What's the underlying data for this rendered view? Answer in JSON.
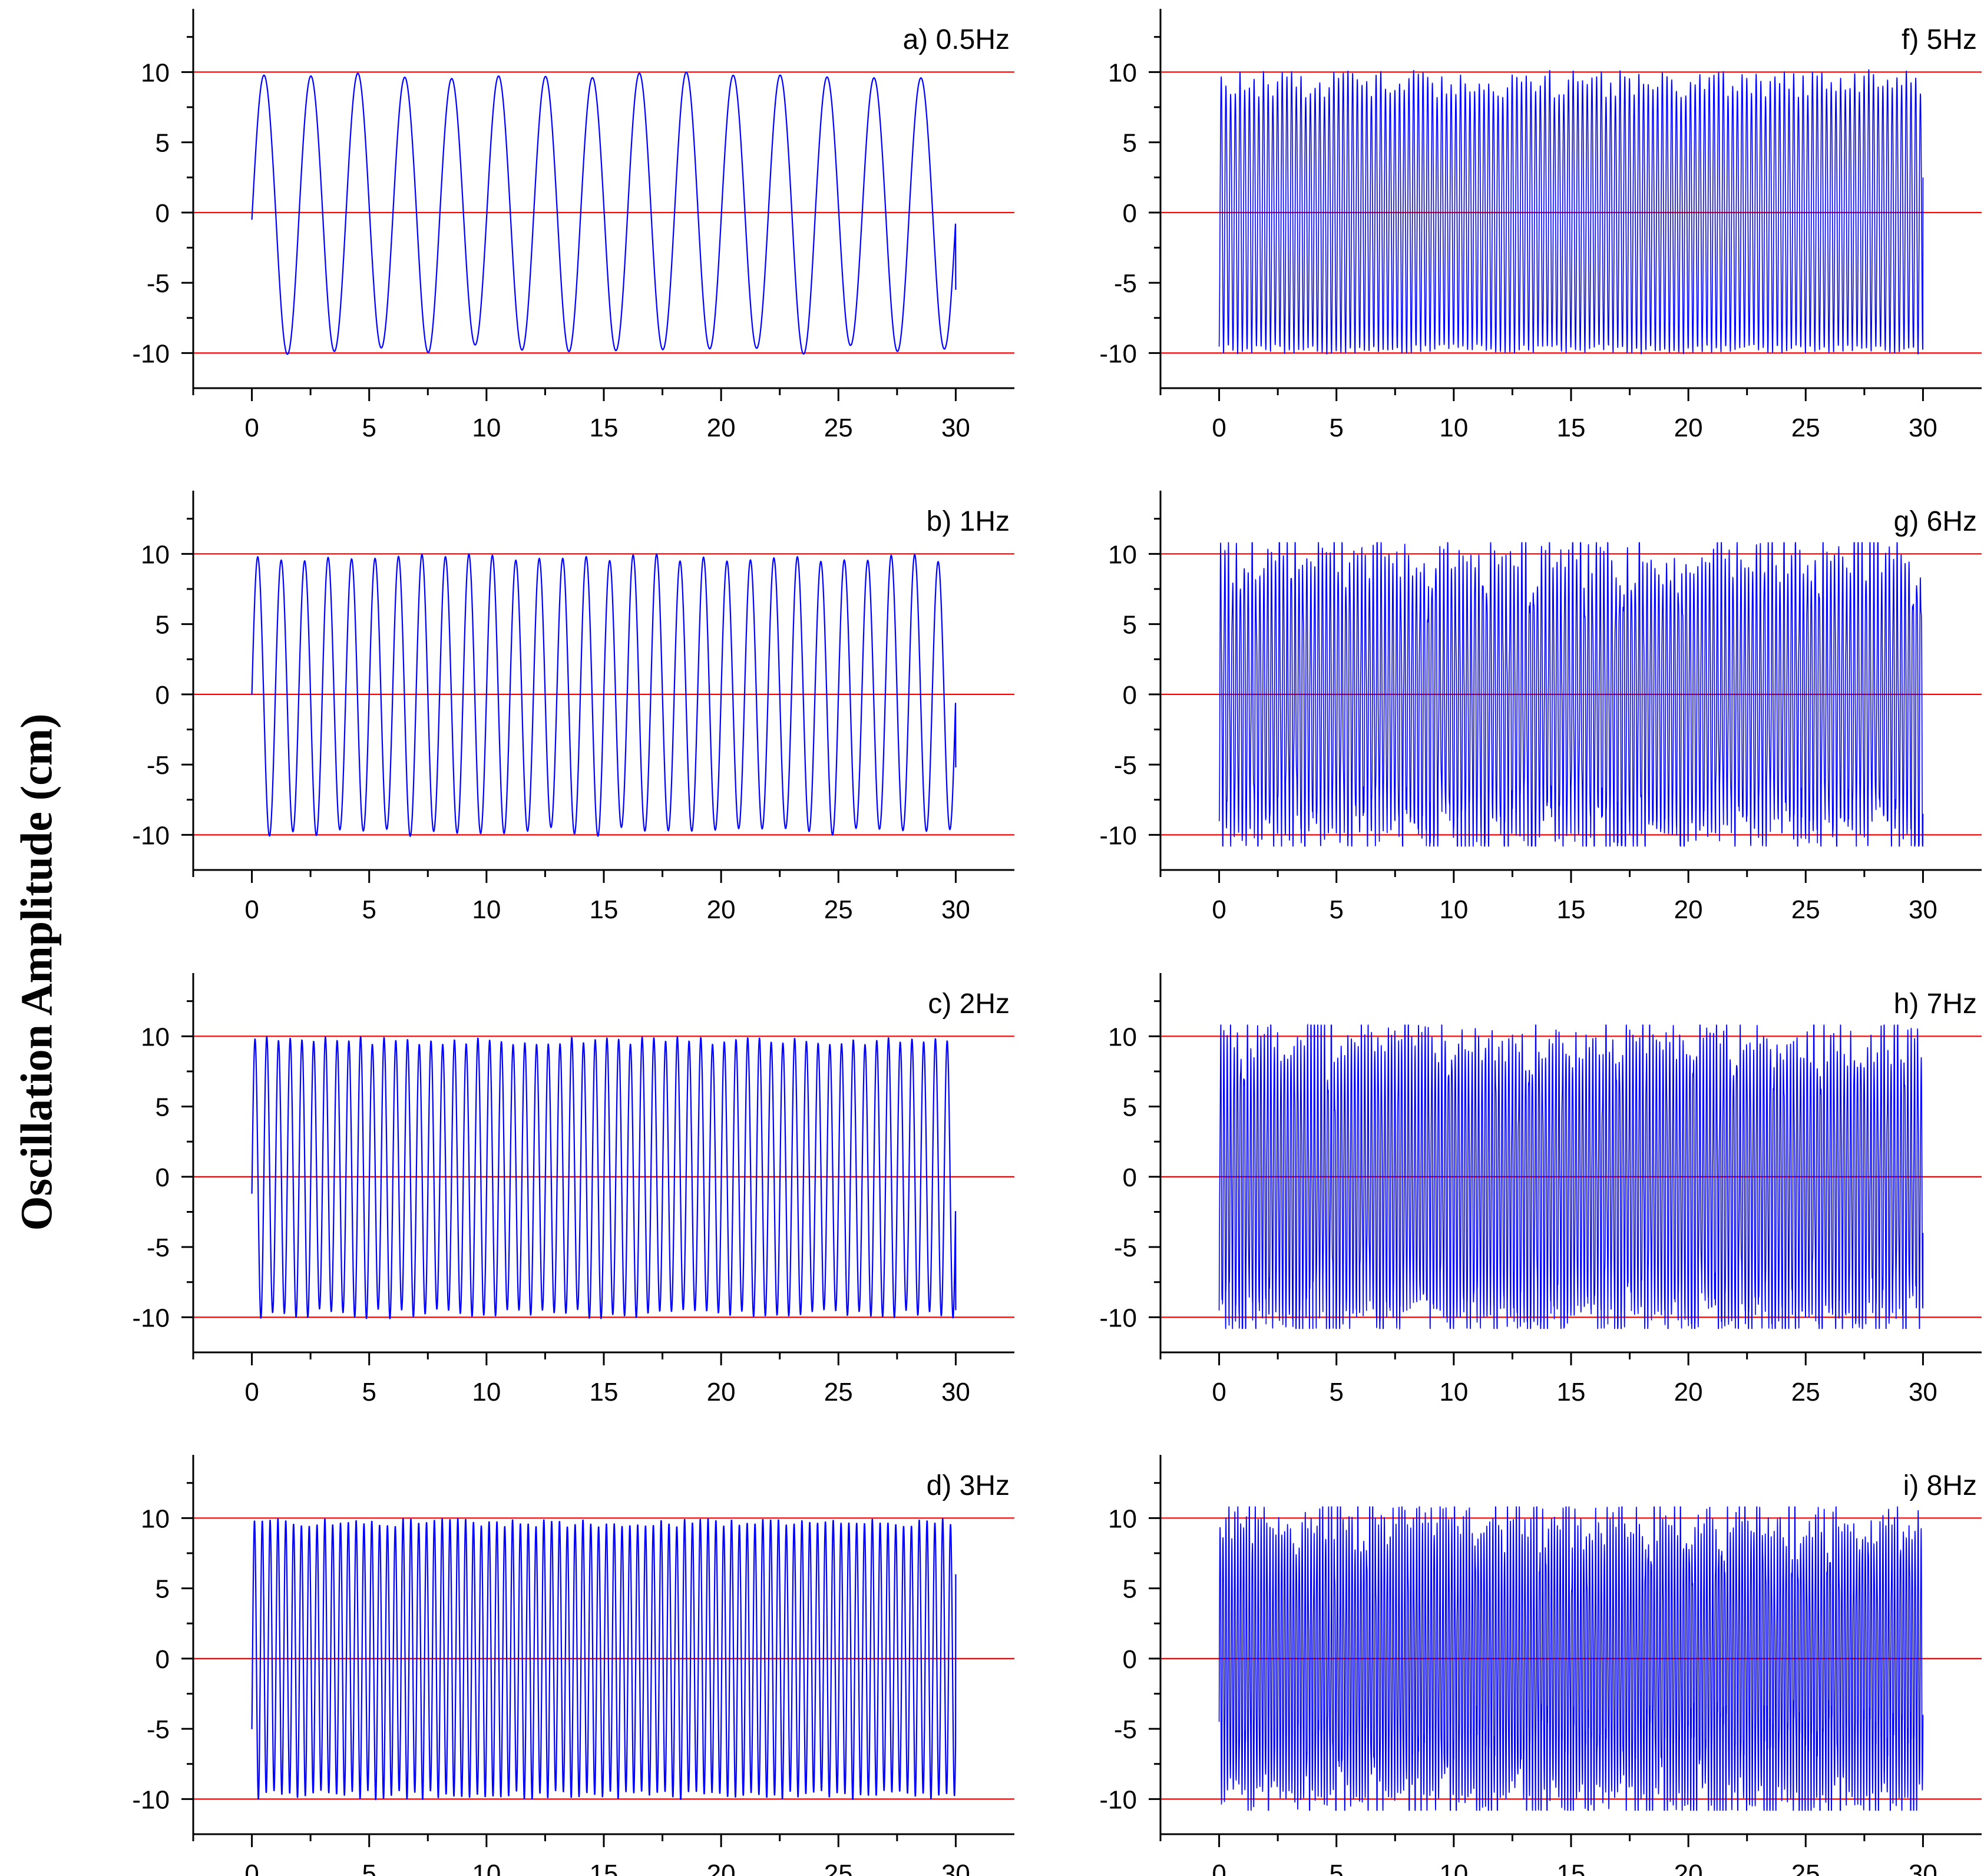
{
  "figure": {
    "ylabel": "Oscillation Amplitude (cm)"
  },
  "colors": {
    "signal": "#0000ff",
    "reference": "#ff0000",
    "axis": "#000000"
  },
  "chart_data": [
    {
      "type": "line",
      "title": "a) 0.5Hz",
      "frequency_hz": 0.5,
      "xlabel": "",
      "ylabel": "Oscillation Amplitude (cm)",
      "xlim": [
        -2.5,
        32.5
      ],
      "ylim": [
        -12.5,
        14.5
      ],
      "xticks": [
        0,
        5,
        10,
        15,
        20,
        25,
        30
      ],
      "yticks": [
        10,
        5,
        0,
        -5,
        -10
      ],
      "ytick_labels": [
        "10",
        "5",
        "0",
        "-5",
        "-10"
      ],
      "reference_lines": [
        10,
        0,
        -10
      ],
      "series": [
        {
          "name": "oscillation",
          "t_start": 0,
          "t_end": 30,
          "amplitude": 10,
          "start_value": -0.5,
          "end_value": -5.5,
          "cycles": 15
        }
      ]
    },
    {
      "type": "line",
      "title": "b) 1Hz",
      "frequency_hz": 1,
      "xlabel": "",
      "ylabel": "Oscillation Amplitude (cm)",
      "xlim": [
        -2.5,
        32.5
      ],
      "ylim": [
        -12.5,
        14.5
      ],
      "xticks": [
        0,
        5,
        10,
        15,
        20,
        25,
        30
      ],
      "yticks": [
        10,
        5,
        0,
        -5,
        -10
      ],
      "ytick_labels": [
        "10",
        "5",
        "0",
        "-5",
        "-10"
      ],
      "reference_lines": [
        10,
        0,
        -10
      ],
      "series": [
        {
          "name": "oscillation",
          "t_start": 0,
          "t_end": 30,
          "amplitude": 10,
          "start_value": 0,
          "end_value": -5.2,
          "cycles": 30
        }
      ]
    },
    {
      "type": "line",
      "title": "c) 2Hz",
      "frequency_hz": 2,
      "xlabel": "",
      "ylabel": "Oscillation Amplitude (cm)",
      "xlim": [
        -2.5,
        32.5
      ],
      "ylim": [
        -12.5,
        14.5
      ],
      "xticks": [
        0,
        5,
        10,
        15,
        20,
        25,
        30
      ],
      "yticks": [
        10,
        5,
        0,
        -5,
        -10
      ],
      "ytick_labels": [
        "10",
        "5",
        "0",
        "-5",
        "-10"
      ],
      "reference_lines": [
        10,
        0,
        -10
      ],
      "series": [
        {
          "name": "oscillation",
          "t_start": 0,
          "t_end": 30,
          "amplitude": 10,
          "start_value": -1.2,
          "end_value": -9.5,
          "cycles": 60
        }
      ]
    },
    {
      "type": "line",
      "title": "d) 3Hz",
      "frequency_hz": 3,
      "xlabel": "",
      "ylabel": "Oscillation Amplitude (cm)",
      "xlim": [
        -2.5,
        32.5
      ],
      "ylim": [
        -12.5,
        14.5
      ],
      "xticks": [
        0,
        5,
        10,
        15,
        20,
        25,
        30
      ],
      "yticks": [
        10,
        5,
        0,
        -5,
        -10
      ],
      "ytick_labels": [
        "10",
        "5",
        "0",
        "-5",
        "-10"
      ],
      "reference_lines": [
        10,
        0,
        -10
      ],
      "series": [
        {
          "name": "oscillation",
          "t_start": 0,
          "t_end": 30,
          "amplitude": 10,
          "start_value": -5,
          "end_value": 6,
          "cycles": 90
        }
      ]
    },
    {
      "type": "line",
      "title": "f) 5Hz",
      "frequency_hz": 5,
      "xlabel": "",
      "ylabel": "Oscillation Amplitude (cm)",
      "xlim": [
        -2.5,
        32.5
      ],
      "ylim": [
        -12.5,
        14.5
      ],
      "xticks": [
        0,
        5,
        10,
        15,
        20,
        25,
        30
      ],
      "yticks": [
        10,
        5,
        0,
        -5,
        -10
      ],
      "ytick_labels": [
        "10",
        "5",
        "0",
        "-5",
        "-10"
      ],
      "reference_lines": [
        10,
        0,
        -10
      ],
      "series": [
        {
          "name": "oscillation",
          "t_start": 0,
          "t_end": 30,
          "amplitude": 10,
          "start_value": -9.5,
          "end_value": 2.5,
          "cycles": 150
        }
      ]
    },
    {
      "type": "line",
      "title": "g) 6Hz",
      "frequency_hz": 6,
      "xlabel": "",
      "ylabel": "Oscillation Amplitude (cm)",
      "xlim": [
        -2.5,
        32.5
      ],
      "ylim": [
        -12.5,
        14.5
      ],
      "xticks": [
        0,
        5,
        10,
        15,
        20,
        25,
        30
      ],
      "yticks": [
        10,
        5,
        0,
        -5,
        -10
      ],
      "ytick_labels": [
        "10",
        "5",
        "0",
        "-5",
        "-10"
      ],
      "reference_lines": [
        10,
        0,
        -10
      ],
      "series": [
        {
          "name": "oscillation",
          "t_start": 0,
          "t_end": 30,
          "amplitude": 10,
          "start_value": -9,
          "end_value": -8.5,
          "cycles": 180
        }
      ]
    },
    {
      "type": "line",
      "title": "h) 7Hz",
      "frequency_hz": 7,
      "xlabel": "",
      "ylabel": "Oscillation Amplitude (cm)",
      "xlim": [
        -2.5,
        32.5
      ],
      "ylim": [
        -12.5,
        14.5
      ],
      "xticks": [
        0,
        5,
        10,
        15,
        20,
        25,
        30
      ],
      "yticks": [
        10,
        5,
        0,
        -5,
        -10
      ],
      "ytick_labels": [
        "10",
        "5",
        "0",
        "-5",
        "-10"
      ],
      "reference_lines": [
        10,
        0,
        -10
      ],
      "series": [
        {
          "name": "oscillation",
          "t_start": 0,
          "t_end": 30,
          "amplitude": 10,
          "start_value": -9.5,
          "end_value": -4,
          "cycles": 210
        }
      ]
    },
    {
      "type": "line",
      "title": "i) 8Hz",
      "frequency_hz": 8,
      "xlabel": "",
      "ylabel": "Oscillation Amplitude (cm)",
      "xlim": [
        -2.5,
        32.5
      ],
      "ylim": [
        -12.5,
        14.5
      ],
      "xticks": [
        0,
        5,
        10,
        15,
        20,
        25,
        30
      ],
      "yticks": [
        10,
        5,
        0,
        -5,
        -10
      ],
      "ytick_labels": [
        "10",
        "5",
        "0",
        "-5",
        "-10"
      ],
      "reference_lines": [
        10,
        0,
        -10
      ],
      "series": [
        {
          "name": "oscillation",
          "t_start": 0,
          "t_end": 30,
          "amplitude": 10,
          "start_value": -4.5,
          "end_value": -4,
          "cycles": 240
        }
      ]
    }
  ]
}
